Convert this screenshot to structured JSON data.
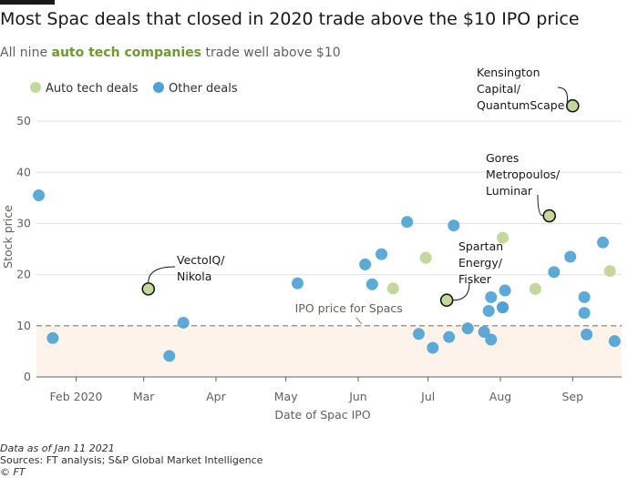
{
  "header": {
    "title": "Most Spac deals that closed in 2020 trade above the $10 IPO price",
    "subtitle_before": "All nine ",
    "subtitle_highlight": "auto tech companies",
    "subtitle_after": " trade well above $10"
  },
  "footer": {
    "note": "Data as of Jan 11 2021",
    "sources": "Sources: FT analysis; S&P Global Market Intelligence",
    "copyright": "© FT"
  },
  "chart_data": {
    "type": "scatter",
    "xlabel": "Date of Spac IPO",
    "ylabel": "Stock price",
    "x_tick_labels": [
      "Feb 2020",
      "Mar",
      "Apr",
      "May",
      "Jun",
      "Jul",
      "Aug",
      "Sep"
    ],
    "x_range": [
      "2020-01-15",
      "2020-09-22"
    ],
    "y_ticks": [
      0,
      10,
      20,
      30,
      40,
      50
    ],
    "ylim": [
      0,
      55
    ],
    "colors": {
      "auto_tech": "#c2d99b",
      "other": "#4ea3d4",
      "highlight_outline": "#1a1817",
      "shade": "#fdf3ea"
    },
    "legend": {
      "position": "top-left",
      "entries": [
        "Auto tech deals",
        "Other deals"
      ]
    },
    "reference_line": {
      "y": 10,
      "label": "IPO price for Spacs"
    },
    "series": [
      {
        "name": "Auto tech deals",
        "points": [
          {
            "x": "2020-03-03",
            "y": 17.2,
            "label": "VectoIQ/ Nikola",
            "lines": [
              "VectoIQ/",
              "Nikola"
            ]
          },
          {
            "x": "2020-06-16",
            "y": 17.3
          },
          {
            "x": "2020-06-30",
            "y": 23.3
          },
          {
            "x": "2020-07-09",
            "y": 15.0,
            "label": "Spartan Energy/ Fisker",
            "lines": [
              "Spartan",
              "Energy/",
              "Fisker"
            ]
          },
          {
            "x": "2020-08-02",
            "y": 27.2
          },
          {
            "x": "2020-08-16",
            "y": 17.2
          },
          {
            "x": "2020-08-22",
            "y": 31.5,
            "label": "Gores Metropoulos/ Luminar",
            "lines": [
              "Gores",
              "Metropoulos/",
              "Luminar"
            ]
          },
          {
            "x": "2020-09-01",
            "y": 53.0,
            "label": "Kensington Capital/ QuantumScape",
            "lines": [
              "Kensington",
              "Capital/",
              "QuantumScape"
            ]
          },
          {
            "x": "2020-09-17",
            "y": 20.7
          }
        ]
      },
      {
        "name": "Other deals",
        "points": [
          {
            "x": "2020-01-16",
            "y": 35.5
          },
          {
            "x": "2020-01-22",
            "y": 7.6
          },
          {
            "x": "2020-03-12",
            "y": 4.1
          },
          {
            "x": "2020-03-18",
            "y": 10.6
          },
          {
            "x": "2020-05-06",
            "y": 18.3
          },
          {
            "x": "2020-06-04",
            "y": 22.0
          },
          {
            "x": "2020-06-07",
            "y": 18.1
          },
          {
            "x": "2020-06-11",
            "y": 24.0
          },
          {
            "x": "2020-06-22",
            "y": 30.3
          },
          {
            "x": "2020-06-27",
            "y": 8.4
          },
          {
            "x": "2020-07-03",
            "y": 5.7
          },
          {
            "x": "2020-07-10",
            "y": 7.8
          },
          {
            "x": "2020-07-12",
            "y": 29.6
          },
          {
            "x": "2020-07-18",
            "y": 9.5
          },
          {
            "x": "2020-07-25",
            "y": 8.8
          },
          {
            "x": "2020-07-27",
            "y": 12.9
          },
          {
            "x": "2020-07-28",
            "y": 7.3
          },
          {
            "x": "2020-07-28",
            "y": 15.6
          },
          {
            "x": "2020-08-02",
            "y": 13.6
          },
          {
            "x": "2020-08-02",
            "y": 13.6
          },
          {
            "x": "2020-08-03",
            "y": 16.9
          },
          {
            "x": "2020-08-24",
            "y": 20.5
          },
          {
            "x": "2020-08-31",
            "y": 23.5
          },
          {
            "x": "2020-09-06",
            "y": 15.6
          },
          {
            "x": "2020-09-06",
            "y": 12.5
          },
          {
            "x": "2020-09-07",
            "y": 8.3
          },
          {
            "x": "2020-09-14",
            "y": 26.3
          },
          {
            "x": "2020-09-19",
            "y": 7.0
          }
        ]
      }
    ]
  }
}
